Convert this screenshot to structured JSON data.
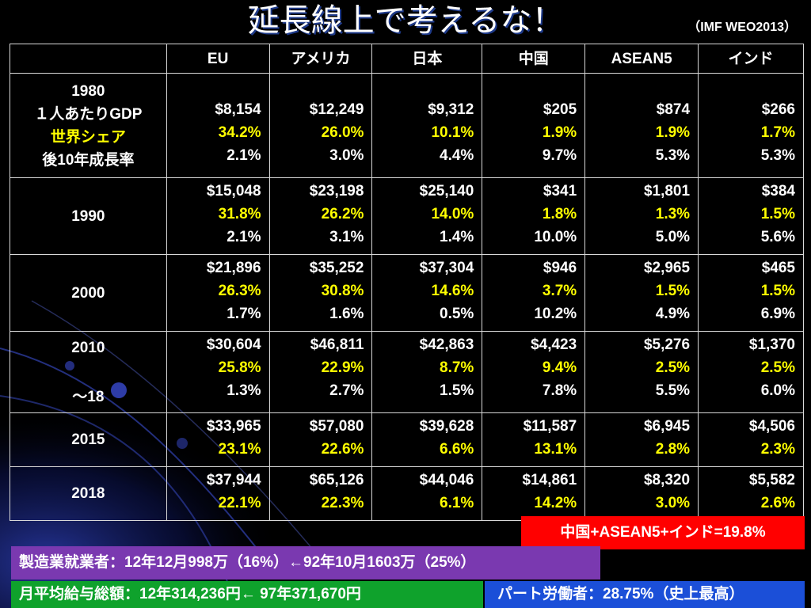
{
  "title": "延長線上で考えるな！",
  "source": "（IMF WEO2013）",
  "columns": [
    "",
    "EU",
    "アメリカ",
    "日本",
    "中国",
    "ASEAN5",
    "インド"
  ],
  "rows": [
    {
      "label_lines": [
        "1980",
        "１人あたりGDP",
        "世界シェア",
        "後10年成長率"
      ],
      "cells": [
        [
          "$8,154",
          "34.2%",
          "2.1%"
        ],
        [
          "$12,249",
          "26.0%",
          "3.0%"
        ],
        [
          "$9,312",
          "10.1%",
          "4.4%"
        ],
        [
          "$205",
          "1.9%",
          "9.7%"
        ],
        [
          "$874",
          "1.9%",
          "5.3%"
        ],
        [
          "$266",
          "1.7%",
          "5.3%"
        ]
      ]
    },
    {
      "label_lines": [
        "1990"
      ],
      "cells": [
        [
          "$15,048",
          "31.8%",
          "2.1%"
        ],
        [
          "$23,198",
          "26.2%",
          "3.1%"
        ],
        [
          "$25,140",
          "14.0%",
          "1.4%"
        ],
        [
          "$341",
          "1.8%",
          "10.0%"
        ],
        [
          "$1,801",
          "1.3%",
          "5.0%"
        ],
        [
          "$384",
          "1.5%",
          "5.6%"
        ]
      ]
    },
    {
      "label_lines": [
        "2000"
      ],
      "cells": [
        [
          "$21,896",
          "26.3%",
          "1.7%"
        ],
        [
          "$35,252",
          "30.8%",
          "1.6%"
        ],
        [
          "$37,304",
          "14.6%",
          "0.5%"
        ],
        [
          "$946",
          "3.7%",
          "10.2%"
        ],
        [
          "$2,965",
          "1.5%",
          "4.9%"
        ],
        [
          "$465",
          "1.5%",
          "6.9%"
        ]
      ]
    },
    {
      "label_lines": [
        "2010",
        "",
        "～18"
      ],
      "cells": [
        [
          "$30,604",
          "25.8%",
          "1.3%"
        ],
        [
          "$46,811",
          "22.9%",
          "2.7%"
        ],
        [
          "$42,863",
          "8.7%",
          "1.5%"
        ],
        [
          "$4,423",
          "9.4%",
          "7.8%"
        ],
        [
          "$5,276",
          "2.5%",
          "5.5%"
        ],
        [
          "$1,370",
          "2.5%",
          "6.0%"
        ]
      ]
    },
    {
      "label_lines": [
        "2015"
      ],
      "cells": [
        [
          "$33,965",
          "23.1%"
        ],
        [
          "$57,080",
          "22.6%"
        ],
        [
          "$39,628",
          "6.6%"
        ],
        [
          "$11,587",
          "13.1%"
        ],
        [
          "$6,945",
          "2.8%"
        ],
        [
          "$4,506",
          "2.3%"
        ]
      ]
    },
    {
      "label_lines": [
        "2018"
      ],
      "cells": [
        [
          "$37,944",
          "22.1%"
        ],
        [
          "$65,126",
          "22.3%"
        ],
        [
          "$44,046",
          "6.1%"
        ],
        [
          "$14,861",
          "14.2%"
        ],
        [
          "$8,320",
          "3.0%"
        ],
        [
          "$5,582",
          "2.6%"
        ]
      ]
    }
  ],
  "banners": {
    "red": "中国+ASEAN5+インド=19.8%",
    "purple": "製造業就業者：12年12月998万（16%）←92年10月1603万（25%）",
    "green": "月平均給与総額：12年314,236円← 97年371,670円",
    "blue": "パート労働者：28.75%（史上最高）"
  },
  "colors": {
    "background": "#000000",
    "share_text": "#ffff00",
    "red_banner": "#ff0000",
    "purple_banner": "#7a39b0",
    "green_banner": "#0fa22c",
    "blue_banner": "#1b4fd8"
  }
}
